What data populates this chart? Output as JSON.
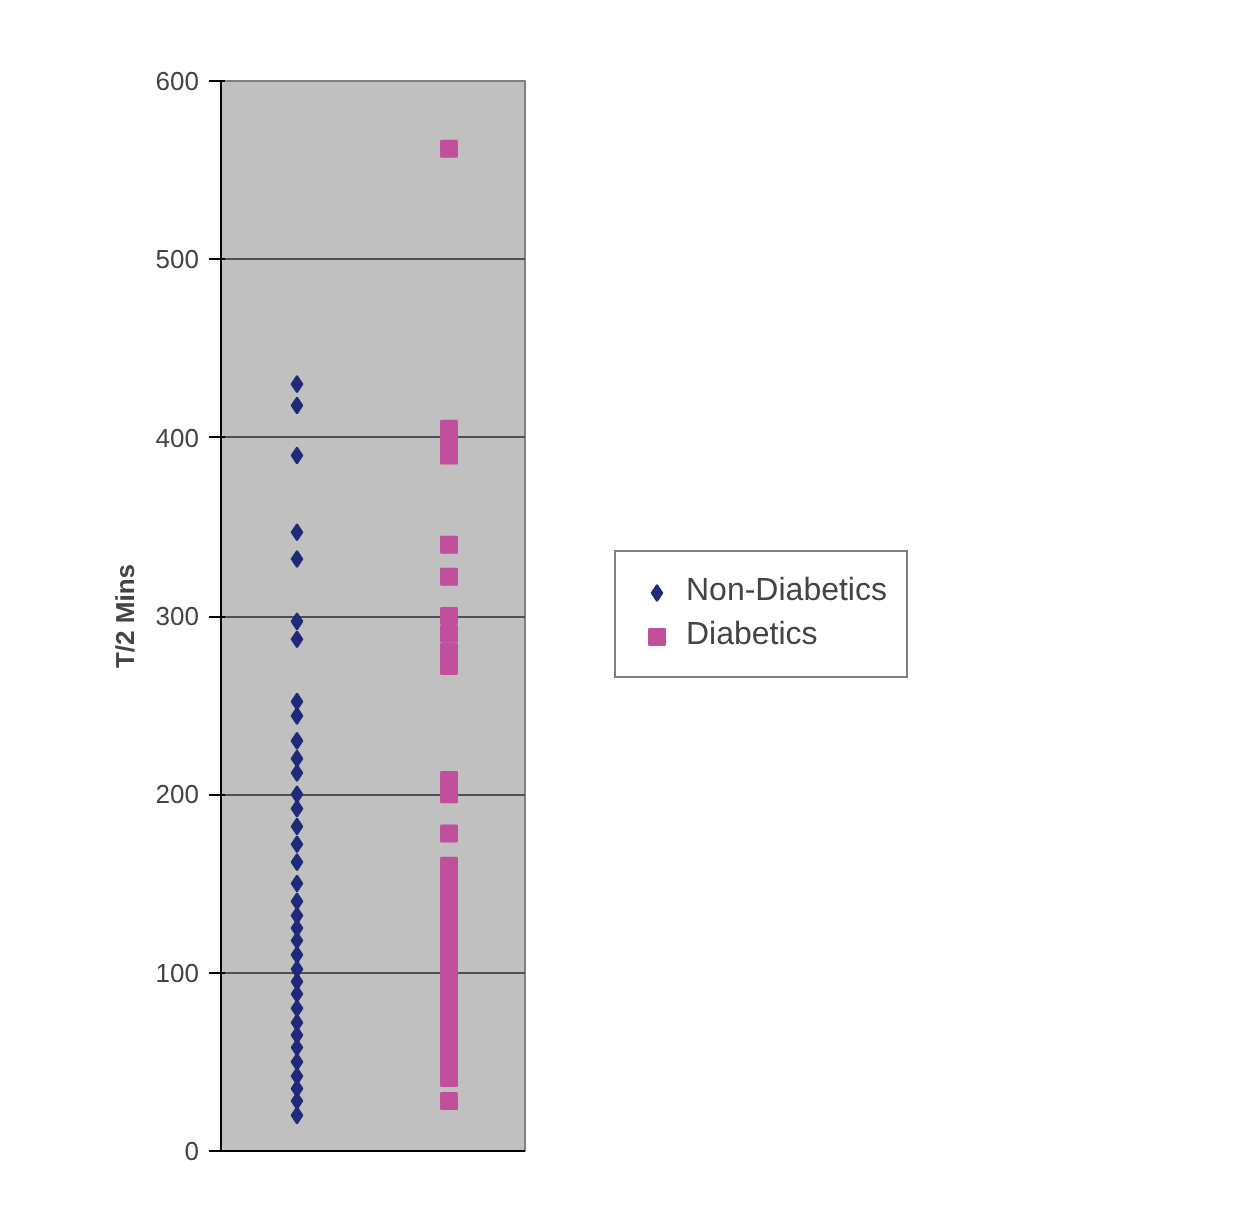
{
  "chart_data": {
    "type": "scatter",
    "ylabel": "T/2 Mins",
    "ylim": [
      0,
      600
    ],
    "yticks": [
      0,
      100,
      200,
      300,
      400,
      500,
      600
    ],
    "categories": [
      null,
      null
    ],
    "grid": "y",
    "legend": "right",
    "series": [
      {
        "name": "Non-Diabetics",
        "color": "#1f2a78",
        "marker": "diamond",
        "values": [
          430,
          null
        ]
      },
      {
        "color": "#1f2a78",
        "marker": "diamond",
        "values": [
          418,
          null
        ]
      },
      {
        "color": "#1f2a78",
        "marker": "diamond",
        "values": [
          390,
          null
        ]
      },
      {
        "color": "#1f2a78",
        "marker": "diamond",
        "values": [
          347,
          null
        ]
      },
      {
        "color": "#1f2a78",
        "marker": "diamond",
        "values": [
          332,
          null
        ]
      },
      {
        "color": "#1f2a78",
        "marker": "diamond",
        "values": [
          297,
          null
        ]
      },
      {
        "color": "#1f2a78",
        "marker": "diamond",
        "values": [
          287,
          null
        ]
      },
      {
        "color": "#1f2a78",
        "marker": "diamond",
        "values": [
          252,
          null
        ]
      },
      {
        "color": "#1f2a78",
        "marker": "diamond",
        "values": [
          244,
          null
        ]
      },
      {
        "color": "#1f2a78",
        "marker": "diamond",
        "values": [
          230,
          null
        ]
      },
      {
        "color": "#1f2a78",
        "marker": "diamond",
        "values": [
          220,
          null
        ]
      },
      {
        "color": "#1f2a78",
        "marker": "diamond",
        "values": [
          212,
          null
        ]
      },
      {
        "color": "#1f2a78",
        "marker": "diamond",
        "values": [
          200,
          null
        ]
      },
      {
        "color": "#1f2a78",
        "marker": "diamond",
        "values": [
          192,
          null
        ]
      },
      {
        "color": "#1f2a78",
        "marker": "diamond",
        "values": [
          182,
          null
        ]
      },
      {
        "color": "#1f2a78",
        "marker": "diamond",
        "values": [
          172,
          null
        ]
      },
      {
        "color": "#1f2a78",
        "marker": "diamond",
        "values": [
          162,
          null
        ]
      },
      {
        "color": "#1f2a78",
        "marker": "diamond",
        "values": [
          150,
          null
        ]
      },
      {
        "color": "#1f2a78",
        "marker": "diamond",
        "values": [
          140,
          null
        ]
      },
      {
        "color": "#1f2a78",
        "marker": "diamond",
        "values": [
          132,
          null
        ]
      },
      {
        "color": "#1f2a78",
        "marker": "diamond",
        "values": [
          125,
          null
        ]
      },
      {
        "color": "#1f2a78",
        "marker": "diamond",
        "values": [
          118,
          null
        ]
      },
      {
        "color": "#1f2a78",
        "marker": "diamond",
        "values": [
          110,
          null
        ]
      },
      {
        "color": "#1f2a78",
        "marker": "diamond",
        "values": [
          102,
          null
        ]
      },
      {
        "color": "#1f2a78",
        "marker": "diamond",
        "values": [
          95,
          null
        ]
      },
      {
        "color": "#1f2a78",
        "marker": "diamond",
        "values": [
          88,
          null
        ]
      },
      {
        "color": "#1f2a78",
        "marker": "diamond",
        "values": [
          80,
          null
        ]
      },
      {
        "color": "#1f2a78",
        "marker": "diamond",
        "values": [
          72,
          null
        ]
      },
      {
        "color": "#1f2a78",
        "marker": "diamond",
        "values": [
          65,
          null
        ]
      },
      {
        "color": "#1f2a78",
        "marker": "diamond",
        "values": [
          58,
          null
        ]
      },
      {
        "color": "#1f2a78",
        "marker": "diamond",
        "values": [
          50,
          null
        ]
      },
      {
        "color": "#1f2a78",
        "marker": "diamond",
        "values": [
          42,
          null
        ]
      },
      {
        "color": "#1f2a78",
        "marker": "diamond",
        "values": [
          35,
          null
        ]
      },
      {
        "color": "#1f2a78",
        "marker": "diamond",
        "values": [
          28,
          null
        ]
      },
      {
        "color": "#1f2a78",
        "marker": "diamond",
        "values": [
          20,
          null
        ]
      },
      {
        "name": "Diabetics",
        "color": "#c0509b",
        "marker": "square",
        "values": [
          null,
          562
        ]
      },
      {
        "color": "#c0509b",
        "marker": "square",
        "values": [
          null,
          405
        ]
      },
      {
        "color": "#c0509b",
        "marker": "square",
        "values": [
          null,
          398
        ]
      },
      {
        "color": "#c0509b",
        "marker": "square",
        "values": [
          null,
          390
        ]
      },
      {
        "color": "#c0509b",
        "marker": "square",
        "values": [
          null,
          340
        ]
      },
      {
        "color": "#c0509b",
        "marker": "square",
        "values": [
          null,
          322
        ]
      },
      {
        "color": "#c0509b",
        "marker": "square",
        "values": [
          null,
          300
        ]
      },
      {
        "color": "#c0509b",
        "marker": "square",
        "values": [
          null,
          290
        ]
      },
      {
        "color": "#c0509b",
        "marker": "square",
        "values": [
          null,
          280
        ]
      },
      {
        "color": "#c0509b",
        "marker": "square",
        "values": [
          null,
          272
        ]
      },
      {
        "color": "#c0509b",
        "marker": "square",
        "values": [
          null,
          208
        ]
      },
      {
        "color": "#c0509b",
        "marker": "square",
        "values": [
          null,
          200
        ]
      },
      {
        "color": "#c0509b",
        "marker": "square",
        "values": [
          null,
          178
        ]
      },
      {
        "color": "#c0509b",
        "marker": "square",
        "values": [
          null,
          160
        ]
      },
      {
        "color": "#c0509b",
        "marker": "square",
        "values": [
          null,
          153
        ]
      },
      {
        "color": "#c0509b",
        "marker": "square",
        "values": [
          null,
          146
        ]
      },
      {
        "color": "#c0509b",
        "marker": "square",
        "values": [
          null,
          139
        ]
      },
      {
        "color": "#c0509b",
        "marker": "square",
        "values": [
          null,
          132
        ]
      },
      {
        "color": "#c0509b",
        "marker": "square",
        "values": [
          null,
          125
        ]
      },
      {
        "color": "#c0509b",
        "marker": "square",
        "values": [
          null,
          118
        ]
      },
      {
        "color": "#c0509b",
        "marker": "square",
        "values": [
          null,
          111
        ]
      },
      {
        "color": "#c0509b",
        "marker": "square",
        "values": [
          null,
          104
        ]
      },
      {
        "color": "#c0509b",
        "marker": "square",
        "values": [
          null,
          97
        ]
      },
      {
        "color": "#c0509b",
        "marker": "square",
        "values": [
          null,
          90
        ]
      },
      {
        "color": "#c0509b",
        "marker": "square",
        "values": [
          null,
          83
        ]
      },
      {
        "color": "#c0509b",
        "marker": "square",
        "values": [
          null,
          76
        ]
      },
      {
        "color": "#c0509b",
        "marker": "square",
        "values": [
          null,
          69
        ]
      },
      {
        "color": "#c0509b",
        "marker": "square",
        "values": [
          null,
          62
        ]
      },
      {
        "color": "#c0509b",
        "marker": "square",
        "values": [
          null,
          55
        ]
      },
      {
        "color": "#c0509b",
        "marker": "square",
        "values": [
          null,
          48
        ]
      },
      {
        "color": "#c0509b",
        "marker": "square",
        "values": [
          null,
          41
        ]
      },
      {
        "color": "#c0509b",
        "marker": "square",
        "values": [
          null,
          28
        ]
      }
    ]
  }
}
